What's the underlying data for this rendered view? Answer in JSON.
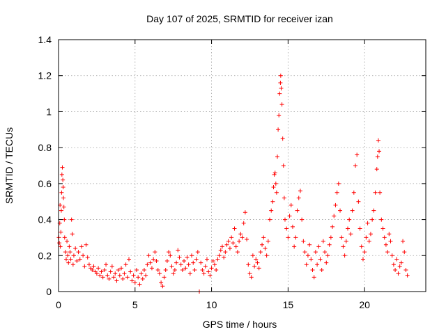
{
  "chart_data": {
    "type": "scatter",
    "title": "Day 107 of 2025, SRMTID for receiver izan",
    "xlabel": "GPS time / hours",
    "ylabel": "SRMTID / TECUs",
    "xlim": [
      0,
      24
    ],
    "ylim": [
      0,
      1.4
    ],
    "xticks": [
      0,
      5,
      10,
      15,
      20
    ],
    "xtick_labels": [
      "0",
      "5",
      "10",
      "15",
      "20"
    ],
    "yticks": [
      0,
      0.2,
      0.4,
      0.6,
      0.8,
      1.0,
      1.2,
      1.4
    ],
    "ytick_labels": [
      "0",
      "0.2",
      "0.4",
      "0.6",
      "0.8",
      "1",
      "1.2",
      "1.4"
    ],
    "grid": true,
    "marker": "+",
    "marker_color": "#ff0000",
    "series": [
      {
        "name": "SRMTID",
        "points": [
          [
            0.02,
            0.3
          ],
          [
            0.05,
            0.27
          ],
          [
            0.08,
            0.38
          ],
          [
            0.1,
            0.48
          ],
          [
            0.12,
            0.25
          ],
          [
            0.15,
            0.33
          ],
          [
            0.18,
            0.45
          ],
          [
            0.2,
            0.55
          ],
          [
            0.22,
            0.65
          ],
          [
            0.25,
            0.69
          ],
          [
            0.28,
            0.62
          ],
          [
            0.3,
            0.58
          ],
          [
            0.32,
            0.52
          ],
          [
            0.35,
            0.47
          ],
          [
            0.38,
            0.4
          ],
          [
            0.4,
            0.3
          ],
          [
            0.45,
            0.22
          ],
          [
            0.5,
            0.18
          ],
          [
            0.55,
            0.28
          ],
          [
            0.6,
            0.2
          ],
          [
            0.65,
            0.16
          ],
          [
            0.7,
            0.25
          ],
          [
            0.75,
            0.22
          ],
          [
            0.8,
            0.18
          ],
          [
            0.85,
            0.4
          ],
          [
            0.9,
            0.32
          ],
          [
            0.95,
            0.15
          ],
          [
            1.0,
            0.2
          ],
          [
            1.1,
            0.24
          ],
          [
            1.2,
            0.17
          ],
          [
            1.3,
            0.22
          ],
          [
            1.4,
            0.18
          ],
          [
            1.5,
            0.25
          ],
          [
            1.6,
            0.2
          ],
          [
            1.7,
            0.14
          ],
          [
            1.8,
            0.26
          ],
          [
            1.9,
            0.19
          ],
          [
            2.0,
            0.15
          ],
          [
            2.1,
            0.13
          ],
          [
            2.2,
            0.12
          ],
          [
            2.3,
            0.14
          ],
          [
            2.4,
            0.11
          ],
          [
            2.5,
            0.1
          ],
          [
            2.6,
            0.13
          ],
          [
            2.7,
            0.09
          ],
          [
            2.8,
            0.11
          ],
          [
            2.9,
            0.08
          ],
          [
            3.0,
            0.12
          ],
          [
            3.1,
            0.15
          ],
          [
            3.2,
            0.09
          ],
          [
            3.3,
            0.07
          ],
          [
            3.4,
            0.11
          ],
          [
            3.5,
            0.14
          ],
          [
            3.6,
            0.08
          ],
          [
            3.7,
            0.1
          ],
          [
            3.8,
            0.06
          ],
          [
            3.9,
            0.12
          ],
          [
            4.0,
            0.09
          ],
          [
            4.1,
            0.13
          ],
          [
            4.2,
            0.07
          ],
          [
            4.3,
            0.1
          ],
          [
            4.4,
            0.15
          ],
          [
            4.5,
            0.08
          ],
          [
            4.6,
            0.18
          ],
          [
            4.7,
            0.11
          ],
          [
            4.8,
            0.06
          ],
          [
            4.9,
            0.09
          ],
          [
            5.0,
            0.05
          ],
          [
            5.1,
            0.12
          ],
          [
            5.2,
            0.08
          ],
          [
            5.3,
            0.04
          ],
          [
            5.4,
            0.1
          ],
          [
            5.5,
            0.07
          ],
          [
            5.6,
            0.12
          ],
          [
            5.7,
            0.09
          ],
          [
            5.8,
            0.15
          ],
          [
            5.9,
            0.2
          ],
          [
            6.0,
            0.16
          ],
          [
            6.1,
            0.13
          ],
          [
            6.2,
            0.18
          ],
          [
            6.3,
            0.22
          ],
          [
            6.4,
            0.17
          ],
          [
            6.5,
            0.12
          ],
          [
            6.6,
            0.1
          ],
          [
            6.7,
            0.05
          ],
          [
            6.8,
            0.03
          ],
          [
            6.9,
            0.08
          ],
          [
            7.0,
            0.12
          ],
          [
            7.1,
            0.17
          ],
          [
            7.2,
            0.22
          ],
          [
            7.3,
            0.2
          ],
          [
            7.4,
            0.14
          ],
          [
            7.5,
            0.1
          ],
          [
            7.6,
            0.12
          ],
          [
            7.7,
            0.16
          ],
          [
            7.8,
            0.23
          ],
          [
            7.9,
            0.19
          ],
          [
            8.0,
            0.15
          ],
          [
            8.1,
            0.12
          ],
          [
            8.2,
            0.17
          ],
          [
            8.3,
            0.13
          ],
          [
            8.4,
            0.19
          ],
          [
            8.5,
            0.15
          ],
          [
            8.6,
            0.1
          ],
          [
            8.7,
            0.2
          ],
          [
            8.8,
            0.16
          ],
          [
            8.9,
            0.12
          ],
          [
            9.0,
            0.18
          ],
          [
            9.1,
            0.22
          ],
          [
            9.2,
            0.0
          ],
          [
            9.3,
            0.16
          ],
          [
            9.4,
            0.12
          ],
          [
            9.5,
            0.1
          ],
          [
            9.6,
            0.14
          ],
          [
            9.7,
            0.18
          ],
          [
            9.8,
            0.11
          ],
          [
            9.9,
            0.09
          ],
          [
            10.0,
            0.13
          ],
          [
            10.1,
            0.17
          ],
          [
            10.2,
            0.15
          ],
          [
            10.3,
            0.12
          ],
          [
            10.4,
            0.18
          ],
          [
            10.5,
            0.2
          ],
          [
            10.6,
            0.23
          ],
          [
            10.7,
            0.25
          ],
          [
            10.8,
            0.19
          ],
          [
            10.9,
            0.22
          ],
          [
            11.0,
            0.26
          ],
          [
            11.1,
            0.28
          ],
          [
            11.2,
            0.24
          ],
          [
            11.3,
            0.3
          ],
          [
            11.4,
            0.27
          ],
          [
            11.5,
            0.35
          ],
          [
            11.6,
            0.25
          ],
          [
            11.7,
            0.22
          ],
          [
            11.8,
            0.28
          ],
          [
            11.9,
            0.32
          ],
          [
            12.0,
            0.3
          ],
          [
            12.1,
            0.38
          ],
          [
            12.2,
            0.44
          ],
          [
            12.3,
            0.29
          ],
          [
            12.4,
            0.15
          ],
          [
            12.5,
            0.1
          ],
          [
            12.6,
            0.08
          ],
          [
            12.7,
            0.2
          ],
          [
            12.8,
            0.14
          ],
          [
            12.9,
            0.18
          ],
          [
            13.0,
            0.16
          ],
          [
            13.1,
            0.13
          ],
          [
            13.2,
            0.22
          ],
          [
            13.3,
            0.26
          ],
          [
            13.4,
            0.3
          ],
          [
            13.5,
            0.24
          ],
          [
            13.6,
            0.2
          ],
          [
            13.7,
            0.28
          ],
          [
            13.8,
            0.4
          ],
          [
            13.9,
            0.45
          ],
          [
            14.0,
            0.5
          ],
          [
            14.05,
            0.58
          ],
          [
            14.1,
            0.65
          ],
          [
            14.15,
            0.66
          ],
          [
            14.2,
            0.6
          ],
          [
            14.25,
            0.55
          ],
          [
            14.3,
            0.75
          ],
          [
            14.35,
            0.9
          ],
          [
            14.4,
            0.98
          ],
          [
            14.45,
            1.1
          ],
          [
            14.5,
            1.16
          ],
          [
            14.52,
            1.2
          ],
          [
            14.55,
            1.13
          ],
          [
            14.6,
            1.04
          ],
          [
            14.65,
            0.85
          ],
          [
            14.7,
            0.7
          ],
          [
            14.75,
            0.52
          ],
          [
            14.8,
            0.4
          ],
          [
            14.9,
            0.35
          ],
          [
            15.0,
            0.3
          ],
          [
            15.1,
            0.42
          ],
          [
            15.2,
            0.48
          ],
          [
            15.3,
            0.36
          ],
          [
            15.4,
            0.25
          ],
          [
            15.5,
            0.3
          ],
          [
            15.6,
            0.45
          ],
          [
            15.7,
            0.52
          ],
          [
            15.8,
            0.56
          ],
          [
            15.9,
            0.4
          ],
          [
            16.0,
            0.28
          ],
          [
            16.1,
            0.22
          ],
          [
            16.2,
            0.15
          ],
          [
            16.3,
            0.2
          ],
          [
            16.4,
            0.26
          ],
          [
            16.5,
            0.18
          ],
          [
            16.6,
            0.12
          ],
          [
            16.7,
            0.08
          ],
          [
            16.8,
            0.22
          ],
          [
            16.9,
            0.15
          ],
          [
            17.0,
            0.25
          ],
          [
            17.1,
            0.18
          ],
          [
            17.2,
            0.12
          ],
          [
            17.3,
            0.28
          ],
          [
            17.4,
            0.22
          ],
          [
            17.5,
            0.16
          ],
          [
            17.6,
            0.2
          ],
          [
            17.7,
            0.26
          ],
          [
            17.8,
            0.3
          ],
          [
            17.9,
            0.36
          ],
          [
            18.0,
            0.42
          ],
          [
            18.1,
            0.48
          ],
          [
            18.2,
            0.55
          ],
          [
            18.3,
            0.6
          ],
          [
            18.4,
            0.45
          ],
          [
            18.5,
            0.3
          ],
          [
            18.6,
            0.25
          ],
          [
            18.7,
            0.2
          ],
          [
            18.8,
            0.28
          ],
          [
            18.9,
            0.35
          ],
          [
            19.0,
            0.4
          ],
          [
            19.1,
            0.32
          ],
          [
            19.2,
            0.45
          ],
          [
            19.3,
            0.55
          ],
          [
            19.4,
            0.7
          ],
          [
            19.5,
            0.76
          ],
          [
            19.6,
            0.5
          ],
          [
            19.7,
            0.35
          ],
          [
            19.8,
            0.25
          ],
          [
            19.9,
            0.18
          ],
          [
            20.0,
            0.22
          ],
          [
            20.1,
            0.3
          ],
          [
            20.2,
            0.38
          ],
          [
            20.3,
            0.28
          ],
          [
            20.4,
            0.32
          ],
          [
            20.5,
            0.4
          ],
          [
            20.6,
            0.45
          ],
          [
            20.7,
            0.55
          ],
          [
            20.8,
            0.68
          ],
          [
            20.85,
            0.75
          ],
          [
            20.9,
            0.84
          ],
          [
            20.95,
            0.78
          ],
          [
            21.0,
            0.55
          ],
          [
            21.1,
            0.4
          ],
          [
            21.2,
            0.35
          ],
          [
            21.3,
            0.3
          ],
          [
            21.4,
            0.26
          ],
          [
            21.5,
            0.22
          ],
          [
            21.6,
            0.32
          ],
          [
            21.7,
            0.28
          ],
          [
            21.8,
            0.2
          ],
          [
            21.9,
            0.15
          ],
          [
            22.0,
            0.12
          ],
          [
            22.1,
            0.18
          ],
          [
            22.2,
            0.1
          ],
          [
            22.3,
            0.14
          ],
          [
            22.4,
            0.16
          ],
          [
            22.5,
            0.28
          ],
          [
            22.6,
            0.22
          ],
          [
            22.7,
            0.12
          ],
          [
            22.8,
            0.09
          ]
        ]
      }
    ]
  }
}
